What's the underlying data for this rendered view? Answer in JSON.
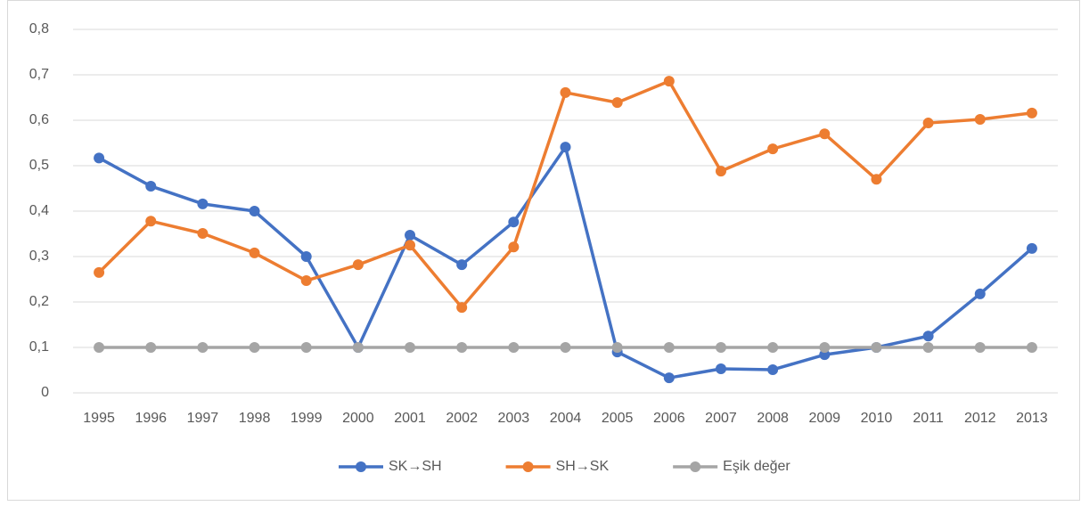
{
  "chart_data": {
    "type": "line",
    "categories": [
      "1995",
      "1996",
      "1997",
      "1998",
      "1999",
      "2000",
      "2001",
      "2002",
      "2003",
      "2004",
      "2005",
      "2006",
      "2007",
      "2008",
      "2009",
      "2010",
      "2011",
      "2012",
      "2013"
    ],
    "series": [
      {
        "name": "SK→SH",
        "color": "#4472c4",
        "values": [
          0.517,
          0.455,
          0.416,
          0.4,
          0.3,
          0.1,
          0.347,
          0.282,
          0.376,
          0.541,
          0.09,
          0.033,
          0.053,
          0.051,
          0.084,
          0.1,
          0.125,
          0.218,
          0.318
        ]
      },
      {
        "name": "SH→SK",
        "color": "#ed7d31",
        "values": [
          0.265,
          0.378,
          0.351,
          0.308,
          0.247,
          0.282,
          0.325,
          0.188,
          0.321,
          0.661,
          0.639,
          0.686,
          0.488,
          0.537,
          0.57,
          0.47,
          0.594,
          0.602,
          0.616
        ]
      },
      {
        "name": "Eşik değer",
        "color": "#a5a5a5",
        "values": [
          0.1,
          0.1,
          0.1,
          0.1,
          0.1,
          0.1,
          0.1,
          0.1,
          0.1,
          0.1,
          0.1,
          0.1,
          0.1,
          0.1,
          0.1,
          0.1,
          0.1,
          0.1,
          0.1
        ]
      }
    ],
    "ylim": [
      0,
      0.8
    ],
    "yticks": [
      0,
      {
        "value": 0.1,
        "label": "0,1"
      },
      {
        "value": 0.2,
        "label": "0,2"
      },
      {
        "value": 0.3,
        "label": "0,3"
      },
      {
        "value": 0.4,
        "label": "0,4"
      },
      {
        "value": 0.5,
        "label": "0,5"
      },
      {
        "value": 0.6,
        "label": "0,6"
      },
      {
        "value": 0.7,
        "label": "0,7"
      },
      {
        "value": 0.8,
        "label": "0,8"
      }
    ],
    "grid": true,
    "legend": "bottom"
  }
}
